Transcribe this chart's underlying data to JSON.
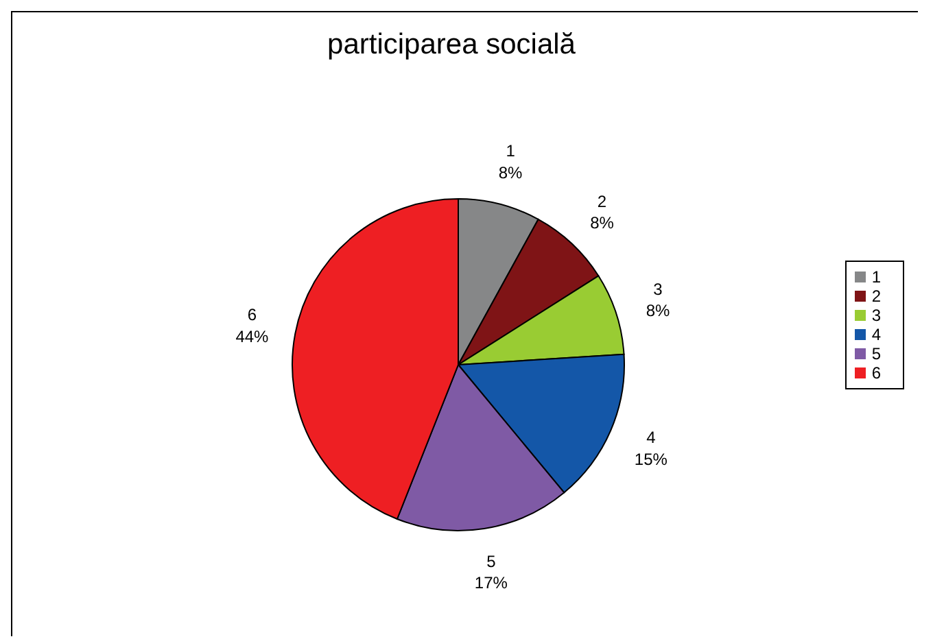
{
  "chart_data": {
    "type": "pie",
    "title": "participarea socială",
    "categories": [
      "1",
      "2",
      "3",
      "4",
      "5",
      "6"
    ],
    "values": [
      8,
      8,
      8,
      15,
      17,
      44
    ],
    "value_labels": [
      "8%",
      "8%",
      "8%",
      "15%",
      "17%",
      "44%"
    ],
    "colors": [
      "#868788",
      "#7f1416",
      "#99cc33",
      "#1457a8",
      "#7f5aa5",
      "#ee1f23"
    ],
    "legend": "right"
  }
}
